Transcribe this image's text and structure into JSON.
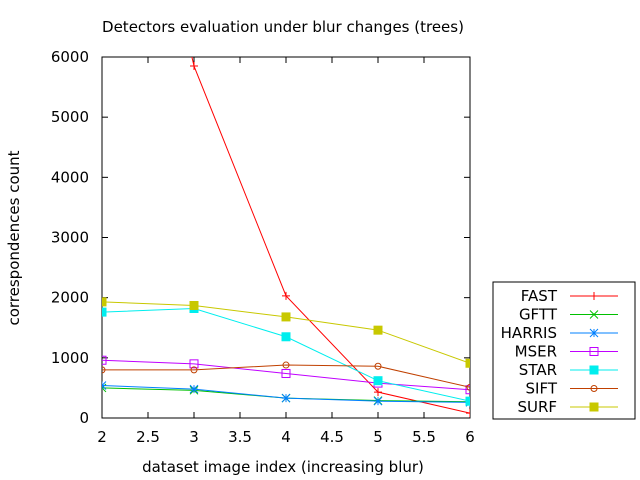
{
  "chart_data": {
    "type": "line",
    "title": "Detectors evaluation under blur changes (trees)",
    "xlabel": "dataset image index (increasing blur)",
    "ylabel": "correspondences count",
    "xlim": [
      2,
      6
    ],
    "ylim": [
      0,
      6000
    ],
    "xticks": [
      "2",
      "2.5",
      "3",
      "3.5",
      "4",
      "4.5",
      "5",
      "5.5",
      "6"
    ],
    "yticks": [
      "0",
      "1000",
      "2000",
      "3000",
      "4000",
      "5000",
      "6000"
    ],
    "grid": false,
    "legend_position": "bottom-right outside",
    "x": [
      2,
      3,
      4,
      5,
      6
    ],
    "series": [
      {
        "name": "FAST",
        "color": "#ff0000",
        "marker": "plus",
        "values": [
          null,
          5850,
          2030,
          430,
          80
        ]
      },
      {
        "name": "GFTT",
        "color": "#00c000",
        "marker": "cross",
        "values": [
          500,
          460,
          330,
          290,
          270
        ]
      },
      {
        "name": "HARRIS",
        "color": "#0080ff",
        "marker": "star",
        "values": [
          540,
          480,
          330,
          280,
          260
        ]
      },
      {
        "name": "MSER",
        "color": "#c000ff",
        "marker": "square",
        "values": [
          960,
          900,
          740,
          580,
          470
        ]
      },
      {
        "name": "STAR",
        "color": "#00eeee",
        "marker": "filledsquare",
        "values": [
          1760,
          1820,
          1350,
          620,
          280
        ]
      },
      {
        "name": "SIFT",
        "color": "#c04000",
        "marker": "circle",
        "values": [
          800,
          800,
          880,
          860,
          510
        ]
      },
      {
        "name": "SURF",
        "color": "#c8c800",
        "marker": "filledsquare",
        "values": [
          1930,
          1870,
          1680,
          1460,
          910
        ]
      }
    ]
  }
}
